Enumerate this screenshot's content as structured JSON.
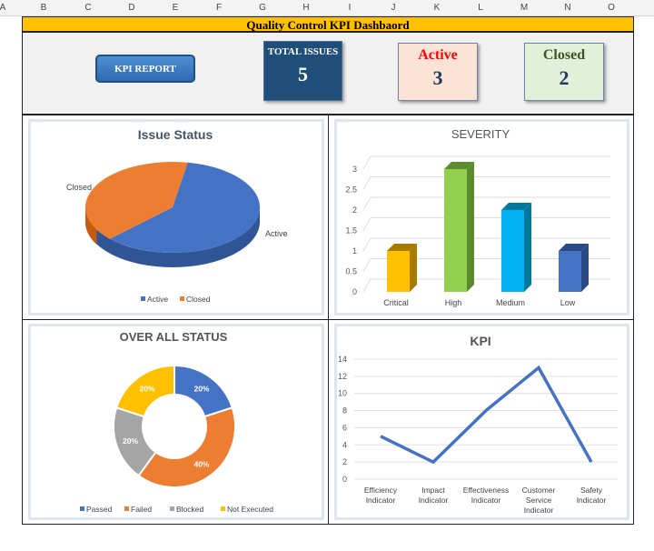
{
  "columns": [
    "A",
    "B",
    "C",
    "D",
    "E",
    "F",
    "G",
    "H",
    "I",
    "J",
    "K",
    "L",
    "M",
    "N",
    "O"
  ],
  "title": "Quality Control KPI Dashbaord",
  "header": {
    "button": "KPI REPORT",
    "total": {
      "label": "TOTAL ISSUES",
      "value": "5"
    },
    "active": {
      "label": "Active",
      "value": "3"
    },
    "closed": {
      "label": "Closed",
      "value": "2"
    }
  },
  "chart_data": [
    {
      "type": "pie",
      "title": "Issue Status",
      "categories": [
        "Active",
        "Closed"
      ],
      "values": [
        3,
        2
      ],
      "colors": [
        "#4472c4",
        "#ed7d31"
      ],
      "legend": "bottom"
    },
    {
      "type": "bar",
      "title": "SEVERITY",
      "categories": [
        "Critical",
        "High",
        "Medium",
        "Low"
      ],
      "values": [
        1,
        3,
        2,
        1
      ],
      "colors": [
        "#ffc000",
        "#92d050",
        "#00b0f0",
        "#4472c4"
      ],
      "yticks": [
        "0",
        "0.5",
        "1",
        "1.5",
        "2",
        "2.5",
        "3"
      ],
      "ylim": [
        0,
        3
      ]
    },
    {
      "type": "pie",
      "title": "OVER ALL STATUS",
      "categories": [
        "Passed",
        "Failed",
        "Blocked",
        "Not Executed"
      ],
      "values": [
        20,
        40,
        20,
        20
      ],
      "labels": [
        "20%",
        "40%",
        "20%",
        "20%"
      ],
      "colors": [
        "#4472c4",
        "#ed7d31",
        "#a5a5a5",
        "#ffc000"
      ],
      "legend": "bottom"
    },
    {
      "type": "line",
      "title": "KPI",
      "categories": [
        "Efficiency Indicator",
        "Impact Indicator",
        "Effectiveness Indicator",
        "Customer Service Indicator",
        "Safety Indicator"
      ],
      "values": [
        5,
        2,
        8,
        13,
        2
      ],
      "yticks": [
        "0",
        "2",
        "4",
        "6",
        "8",
        "10",
        "12",
        "14"
      ],
      "ylim": [
        0,
        14
      ],
      "color": "#4472c4"
    }
  ]
}
